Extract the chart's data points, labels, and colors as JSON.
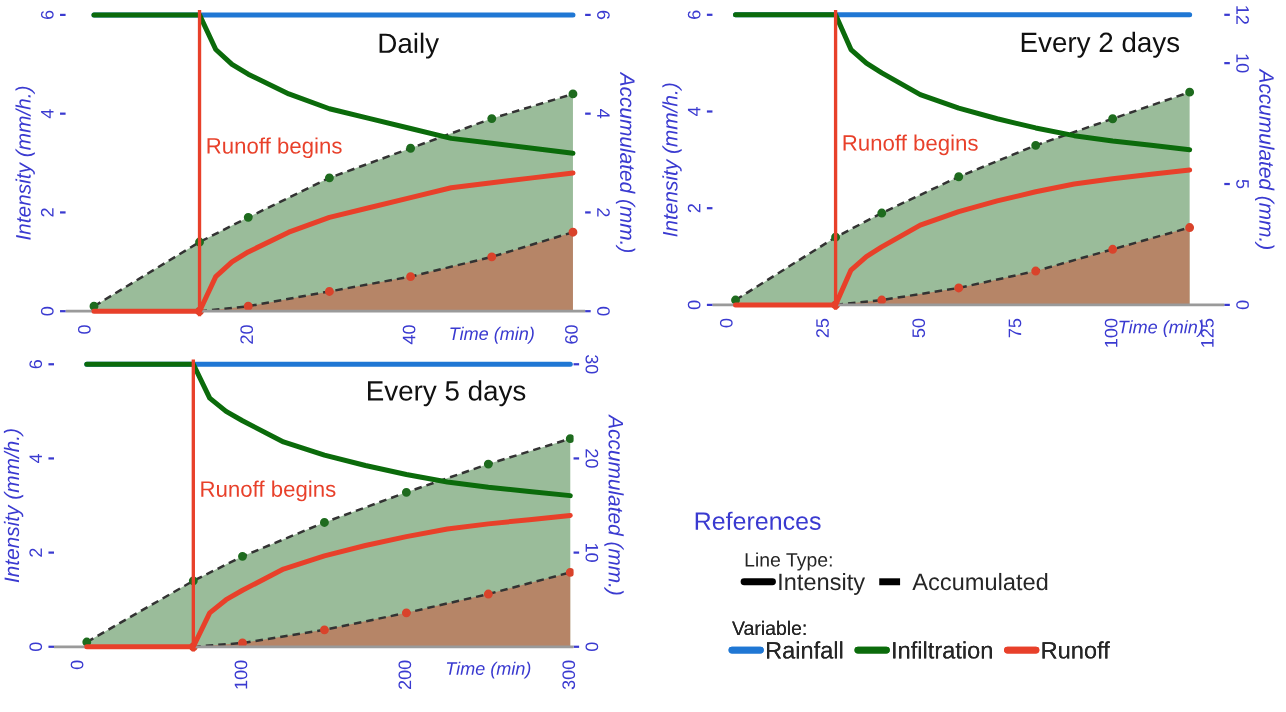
{
  "chart_data": [
    {
      "type": "line",
      "title": "Daily",
      "xlabel": "Time (min)",
      "ylabel": "Intensity (mm/h.)",
      "y2label": "Accumulated (mm.)",
      "xlim": [
        -2.5,
        61.5
      ],
      "xticks": [
        0,
        20,
        40,
        60
      ],
      "ylim": [
        -0.1,
        6.1
      ],
      "yticks": [
        0,
        2,
        4,
        6
      ],
      "y2lim": [
        -0.1,
        6.1
      ],
      "y2ticks": [
        0,
        2,
        4,
        6
      ],
      "ref_lines": [
        {
          "axis": "x",
          "value": 14,
          "label": "Runoff begins",
          "color": "#e8402a"
        }
      ],
      "series": [
        {
          "type": "area",
          "axis": "y2",
          "color": "#1e6b1e",
          "line_style": "dashed",
          "marker": "circle",
          "x": [
            1,
            14,
            20,
            30,
            40,
            50,
            60
          ],
          "values": [
            0.1,
            1.4,
            1.9,
            2.7,
            3.3,
            3.9,
            4.4
          ]
        },
        {
          "type": "area",
          "axis": "y2",
          "color": "#d9432b",
          "line_style": "dashed",
          "marker": "circle",
          "x": [
            14,
            20,
            30,
            40,
            50,
            60
          ],
          "values": [
            0,
            0.1,
            0.4,
            0.7,
            1.1,
            1.6
          ]
        },
        {
          "type": "line",
          "color": "#1f77d4",
          "x": [
            1,
            60
          ],
          "values": [
            6,
            6
          ]
        },
        {
          "type": "line",
          "color": "#0b6b0b",
          "x": [
            1,
            14,
            16,
            18,
            20,
            25,
            30,
            35,
            40,
            45,
            50,
            55,
            60
          ],
          "values": [
            6,
            6,
            5.3,
            5.0,
            4.8,
            4.4,
            4.1,
            3.9,
            3.7,
            3.5,
            3.4,
            3.3,
            3.2
          ]
        },
        {
          "type": "line",
          "color": "#e8402a",
          "x": [
            1,
            14,
            16,
            18,
            20,
            25,
            30,
            35,
            40,
            45,
            50,
            55,
            60
          ],
          "values": [
            0,
            0,
            0.7,
            1.0,
            1.2,
            1.6,
            1.9,
            2.1,
            2.3,
            2.5,
            2.6,
            2.7,
            2.8
          ]
        }
      ]
    },
    {
      "type": "line",
      "title": "Every 2 days",
      "xlabel": "Time (min)",
      "ylabel": "Intensity (mm/h.)",
      "y2label": "Accumulated (mm.)",
      "xlim": [
        -4,
        129
      ],
      "xticks": [
        0,
        25,
        50,
        75,
        100,
        125
      ],
      "ylim": [
        -0.1,
        6.1
      ],
      "yticks": [
        0,
        2,
        4,
        6
      ],
      "y2lim": [
        -0.2,
        12.2
      ],
      "y2ticks": [
        0,
        5,
        10,
        12
      ],
      "ref_lines": [
        {
          "axis": "x",
          "value": 28,
          "label": "Runoff begins",
          "color": "#e8402a"
        }
      ],
      "series": [
        {
          "type": "area",
          "axis": "y2",
          "color": "#1e6b1e",
          "line_style": "dashed",
          "marker": "circle",
          "x": [
            2,
            28,
            40,
            60,
            80,
            100,
            120
          ],
          "values": [
            0.2,
            2.8,
            3.8,
            5.3,
            6.6,
            7.7,
            8.8
          ]
        },
        {
          "type": "area",
          "axis": "y2",
          "color": "#d9432b",
          "line_style": "dashed",
          "marker": "circle",
          "x": [
            28,
            40,
            60,
            80,
            100,
            120
          ],
          "values": [
            0,
            0.2,
            0.7,
            1.4,
            2.3,
            3.2
          ]
        },
        {
          "type": "line",
          "color": "#1f77d4",
          "x": [
            2,
            120
          ],
          "values": [
            6,
            6
          ]
        },
        {
          "type": "line",
          "color": "#0b6b0b",
          "x": [
            2,
            28,
            32,
            36,
            40,
            50,
            60,
            70,
            80,
            90,
            100,
            110,
            120
          ],
          "values": [
            6,
            6,
            5.28,
            5.0,
            4.8,
            4.35,
            4.07,
            3.85,
            3.66,
            3.5,
            3.39,
            3.3,
            3.21
          ]
        },
        {
          "type": "line",
          "color": "#e8402a",
          "x": [
            2,
            28,
            32,
            36,
            40,
            50,
            60,
            70,
            80,
            90,
            100,
            110,
            120
          ],
          "values": [
            0,
            0,
            0.72,
            1.0,
            1.2,
            1.65,
            1.93,
            2.15,
            2.34,
            2.5,
            2.61,
            2.7,
            2.79
          ]
        }
      ]
    },
    {
      "type": "line",
      "title": "Every 5 days",
      "xlabel": "Time (min)",
      "ylabel": "Intensity (mm/h.)",
      "y2label": "Accumulated (mm.)",
      "xlim": [
        -15,
        302
      ],
      "xticks": [
        0,
        100,
        200,
        300
      ],
      "ylim": [
        -0.1,
        6.1
      ],
      "yticks": [
        0,
        2,
        4,
        6
      ],
      "y2lim": [
        -0.5,
        30.5
      ],
      "y2ticks": [
        0,
        10,
        20,
        30
      ],
      "ref_lines": [
        {
          "axis": "x",
          "value": 70,
          "label": "Runoff begins",
          "color": "#e8402a"
        }
      ],
      "series": [
        {
          "type": "area",
          "axis": "y2",
          "color": "#1e6b1e",
          "line_style": "dashed",
          "marker": "circle",
          "x": [
            5,
            70,
            100,
            150,
            200,
            250,
            300
          ],
          "values": [
            0.5,
            7,
            9.6,
            13.2,
            16.4,
            19.4,
            22.1
          ]
        },
        {
          "type": "area",
          "axis": "y2",
          "color": "#d9432b",
          "line_style": "dashed",
          "marker": "circle",
          "x": [
            70,
            100,
            150,
            200,
            250,
            300
          ],
          "values": [
            0,
            0.4,
            1.8,
            3.6,
            5.6,
            7.9
          ]
        },
        {
          "type": "line",
          "color": "#1f77d4",
          "x": [
            5,
            300
          ],
          "values": [
            6,
            6
          ]
        },
        {
          "type": "line",
          "color": "#0b6b0b",
          "x": [
            5,
            70,
            80,
            90,
            100,
            125,
            150,
            175,
            200,
            225,
            250,
            275,
            300
          ],
          "values": [
            6,
            6,
            5.28,
            5.0,
            4.8,
            4.35,
            4.07,
            3.85,
            3.66,
            3.5,
            3.39,
            3.3,
            3.21
          ]
        },
        {
          "type": "line",
          "color": "#e8402a",
          "x": [
            5,
            70,
            80,
            90,
            100,
            125,
            150,
            175,
            200,
            225,
            250,
            275,
            300
          ],
          "values": [
            0,
            0,
            0.72,
            1.0,
            1.2,
            1.65,
            1.93,
            2.15,
            2.34,
            2.5,
            2.61,
            2.7,
            2.79
          ]
        }
      ]
    },
    {
      "type": "other",
      "title": "References",
      "annotations": [
        "Line Type:",
        "Variable:"
      ],
      "series": [
        {
          "name": "Intensity",
          "color": "#000000",
          "line_style": "solid"
        },
        {
          "name": "Accumulated",
          "color": "#000000",
          "line_style": "dashed"
        },
        {
          "name": "Rainfall",
          "color": "#1f77d4",
          "line_style": "solid"
        },
        {
          "name": "Infiltration",
          "color": "#0b6b0b",
          "line_style": "solid"
        },
        {
          "name": "Runoff",
          "color": "#e8402a",
          "line_style": "solid"
        }
      ]
    }
  ]
}
